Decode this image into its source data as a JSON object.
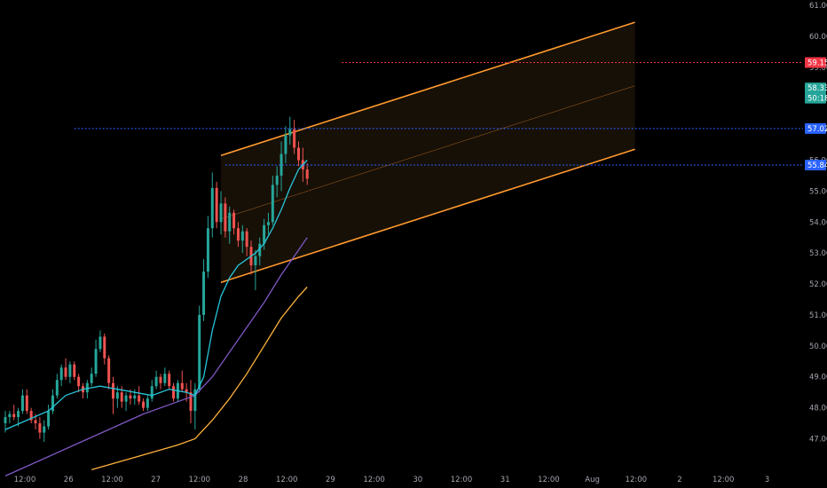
{
  "chart_data": {
    "type": "candlestick",
    "ylim": [
      46.7,
      61.2
    ],
    "x_tick_labels": [
      "12:00",
      "26",
      "12:00",
      "27",
      "12:00",
      "28",
      "12:00",
      "29",
      "12:00",
      "30",
      "12:00",
      "31",
      "12:00",
      "Aug",
      "12:00",
      "2",
      "12:00",
      "3"
    ],
    "y_tick_labels": [
      "61.00",
      "60.00",
      "59.00",
      "58.00",
      "57.00",
      "56.00",
      "55.00",
      "54.00",
      "53.00",
      "52.00",
      "51.00",
      "50.00",
      "49.00",
      "48.00",
      "47.00"
    ],
    "y_ticks": [
      61,
      60,
      59,
      58,
      57,
      56,
      55,
      54,
      53,
      52,
      51,
      50,
      49,
      48,
      47
    ],
    "colors": {
      "background": "#000000",
      "up": "#26a69a",
      "down": "#ef5350",
      "ma_fast": "#26c6da",
      "ma_mid": "#7e57c2",
      "ma_slow": "#ffb13b",
      "channel": "#ff9a2e",
      "channel_fill": "#1a1208",
      "red_line": "#f23645",
      "blue_line": "#2962ff"
    },
    "channel": {
      "upper": [
        [
          0,
          56.15
        ],
        [
          96,
          60.45
        ]
      ],
      "lower": [
        [
          0,
          52.05
        ],
        [
          96,
          56.35
        ]
      ],
      "middle": [
        [
          0,
          54.1
        ],
        [
          96,
          58.4
        ]
      ]
    },
    "horizontal_lines": [
      {
        "price": 59.15,
        "label": "59.15",
        "style": "red_line",
        "x_start": 78
      },
      {
        "price": 57.02,
        "label": "57.02",
        "style": "blue_line",
        "x_start": 16
      },
      {
        "price": 55.84,
        "label": "55.84",
        "style": "blue_line",
        "x_start": 51
      }
    ],
    "price_tags": [
      {
        "price": 58.33,
        "label": "58.33",
        "style": "up"
      },
      {
        "price": 58.0,
        "label": "50:18",
        "style": "up"
      }
    ],
    "ohlc": [
      [
        47.5,
        47.9,
        47.2,
        47.7
      ],
      [
        47.7,
        47.9,
        47.5,
        47.8
      ],
      [
        47.8,
        48.1,
        47.6,
        47.7
      ],
      [
        47.7,
        48.0,
        47.4,
        47.9
      ],
      [
        47.9,
        48.6,
        47.8,
        48.4
      ],
      [
        48.4,
        48.6,
        47.8,
        47.9
      ],
      [
        47.9,
        48.0,
        47.5,
        47.6
      ],
      [
        47.6,
        47.8,
        47.3,
        47.5
      ],
      [
        47.5,
        47.7,
        47.0,
        47.2
      ],
      [
        47.2,
        47.6,
        46.9,
        47.4
      ],
      [
        47.4,
        48.1,
        47.3,
        47.9
      ],
      [
        47.9,
        48.6,
        47.8,
        48.4
      ],
      [
        48.4,
        49.1,
        48.3,
        48.9
      ],
      [
        48.9,
        49.4,
        48.7,
        49.3
      ],
      [
        49.3,
        49.6,
        48.9,
        49.0
      ],
      [
        49.0,
        49.5,
        48.8,
        49.4
      ],
      [
        49.4,
        49.5,
        48.9,
        49.0
      ],
      [
        49.0,
        49.1,
        48.5,
        48.7
      ],
      [
        48.7,
        48.8,
        48.3,
        48.5
      ],
      [
        48.5,
        48.9,
        48.3,
        48.8
      ],
      [
        48.8,
        49.3,
        48.7,
        49.1
      ],
      [
        49.1,
        50.2,
        49.0,
        49.9
      ],
      [
        49.9,
        50.5,
        49.8,
        50.3
      ],
      [
        50.3,
        50.4,
        49.4,
        49.6
      ],
      [
        49.6,
        49.7,
        48.6,
        48.8
      ],
      [
        48.8,
        49.0,
        47.8,
        48.3
      ],
      [
        48.3,
        48.7,
        48.0,
        48.5
      ],
      [
        48.5,
        48.7,
        48.0,
        48.2
      ],
      [
        48.2,
        48.5,
        47.9,
        48.4
      ],
      [
        48.4,
        48.6,
        48.1,
        48.3
      ],
      [
        48.3,
        48.6,
        48.1,
        48.4
      ],
      [
        48.4,
        48.7,
        48.1,
        48.2
      ],
      [
        48.2,
        48.3,
        47.9,
        48.0
      ],
      [
        48.0,
        48.4,
        47.9,
        48.3
      ],
      [
        48.3,
        48.9,
        48.2,
        48.7
      ],
      [
        48.7,
        49.2,
        48.6,
        49.0
      ],
      [
        49.0,
        49.1,
        48.6,
        48.8
      ],
      [
        48.8,
        49.3,
        48.7,
        49.1
      ],
      [
        49.1,
        49.2,
        48.6,
        48.7
      ],
      [
        48.7,
        48.8,
        48.2,
        48.3
      ],
      [
        48.3,
        48.9,
        48.2,
        48.8
      ],
      [
        48.8,
        49.2,
        48.5,
        48.6
      ],
      [
        48.6,
        48.8,
        48.2,
        48.5
      ],
      [
        48.5,
        48.9,
        47.5,
        47.9
      ],
      [
        47.9,
        48.8,
        47.3,
        48.6
      ],
      [
        48.6,
        51.3,
        48.5,
        51.0
      ],
      [
        51.0,
        52.8,
        50.8,
        52.4
      ],
      [
        52.4,
        54.2,
        52.2,
        53.8
      ],
      [
        53.8,
        55.6,
        53.5,
        55.1
      ],
      [
        55.1,
        55.3,
        53.8,
        54.0
      ],
      [
        54.0,
        55.0,
        53.6,
        54.6
      ],
      [
        54.6,
        54.8,
        53.5,
        53.7
      ],
      [
        53.7,
        54.5,
        53.3,
        54.3
      ],
      [
        54.3,
        54.4,
        53.6,
        53.8
      ],
      [
        53.8,
        54.0,
        53.2,
        53.4
      ],
      [
        53.4,
        53.9,
        53.0,
        53.7
      ],
      [
        53.7,
        53.8,
        52.9,
        53.2
      ],
      [
        53.2,
        53.4,
        52.3,
        52.6
      ],
      [
        52.6,
        53.1,
        51.8,
        52.9
      ],
      [
        52.9,
        53.5,
        52.6,
        53.3
      ],
      [
        53.3,
        54.1,
        53.1,
        53.9
      ],
      [
        53.9,
        54.3,
        53.6,
        54.0
      ],
      [
        54.0,
        55.5,
        53.9,
        55.2
      ],
      [
        55.2,
        55.8,
        54.8,
        55.5
      ],
      [
        55.5,
        56.6,
        55.0,
        56.2
      ],
      [
        56.2,
        57.1,
        55.9,
        56.8
      ],
      [
        56.8,
        57.4,
        56.5,
        57.0
      ],
      [
        57.0,
        57.3,
        56.2,
        56.4
      ],
      [
        56.4,
        56.6,
        55.8,
        56.0
      ],
      [
        56.0,
        56.4,
        55.3,
        55.7
      ],
      [
        55.7,
        55.9,
        55.2,
        55.4
      ]
    ],
    "ma_fast": [
      [
        0,
        47.3
      ],
      [
        5,
        47.6
      ],
      [
        10,
        47.9
      ],
      [
        14,
        48.4
      ],
      [
        18,
        48.6
      ],
      [
        22,
        48.7
      ],
      [
        26,
        48.6
      ],
      [
        30,
        48.5
      ],
      [
        34,
        48.4
      ],
      [
        38,
        48.6
      ],
      [
        42,
        48.5
      ],
      [
        44,
        48.4
      ],
      [
        46,
        49.0
      ],
      [
        48,
        50.5
      ],
      [
        50,
        51.6
      ],
      [
        52,
        52.2
      ],
      [
        54,
        52.6
      ],
      [
        56,
        52.8
      ],
      [
        58,
        53.0
      ],
      [
        60,
        53.3
      ],
      [
        62,
        53.8
      ],
      [
        64,
        54.4
      ],
      [
        66,
        55.1
      ],
      [
        68,
        55.7
      ],
      [
        70,
        56.0
      ]
    ],
    "ma_mid": [
      [
        0,
        45.8
      ],
      [
        8,
        46.3
      ],
      [
        16,
        46.8
      ],
      [
        24,
        47.3
      ],
      [
        32,
        47.8
      ],
      [
        40,
        48.2
      ],
      [
        44,
        48.4
      ],
      [
        48,
        49.0
      ],
      [
        52,
        49.8
      ],
      [
        56,
        50.6
      ],
      [
        60,
        51.4
      ],
      [
        64,
        52.3
      ],
      [
        68,
        53.1
      ],
      [
        70,
        53.5
      ]
    ],
    "ma_slow": [
      [
        20,
        46.0
      ],
      [
        30,
        46.4
      ],
      [
        40,
        46.8
      ],
      [
        44,
        47.0
      ],
      [
        48,
        47.6
      ],
      [
        52,
        48.3
      ],
      [
        56,
        49.1
      ],
      [
        60,
        50.0
      ],
      [
        64,
        50.9
      ],
      [
        68,
        51.6
      ],
      [
        70,
        51.9
      ]
    ]
  }
}
